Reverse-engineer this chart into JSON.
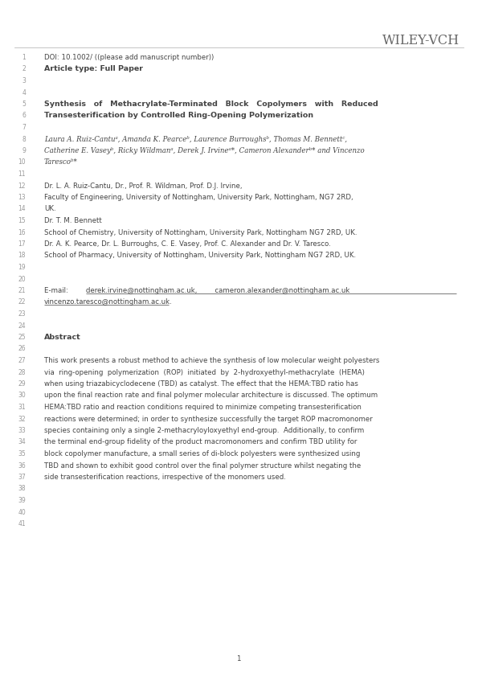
{
  "bg_color": "#ffffff",
  "wiley_text": "WILEY-VCH",
  "wiley_color": "#666666",
  "line_number_color": "#999999",
  "text_color": "#444444",
  "lines": [
    {
      "num": 1,
      "text": "DOI: 10.1002/ ((please add manuscript number))",
      "style": "normal"
    },
    {
      "num": 2,
      "text": "Article type: Full Paper",
      "style": "bold"
    },
    {
      "num": 3,
      "text": "",
      "style": "normal"
    },
    {
      "num": 4,
      "text": "",
      "style": "normal"
    },
    {
      "num": 5,
      "text": "Synthesis   of   Methacrylate-Terminated   Block   Copolymers   with   Reduced",
      "style": "bold"
    },
    {
      "num": 6,
      "text": "Transesterification by Controlled Ring-Opening Polymerization",
      "style": "bold"
    },
    {
      "num": 7,
      "text": "",
      "style": "normal"
    },
    {
      "num": 8,
      "text": "Laura A. Ruiz-Cantuᵃ, Amanda K. Pearceᵇ, Laurence Burroughsᵇ, Thomas M. Bennettᶜ,",
      "style": "italic"
    },
    {
      "num": 9,
      "text": "Catherine E. Vaseyᵇ, Ricky Wildmanᵃ, Derek J. Irvineᵃ*, Cameron Alexanderᵇ* and Vincenzo",
      "style": "italic"
    },
    {
      "num": 10,
      "text": "Tarescoᵇ*",
      "style": "italic"
    },
    {
      "num": 11,
      "text": "",
      "style": "normal"
    },
    {
      "num": 12,
      "text": "Dr. L. A. Ruiz-Cantu, Dr., Prof. R. Wildman, Prof. D.J. Irvine,",
      "style": "normal"
    },
    {
      "num": 13,
      "text": "Faculty of Engineering, University of Nottingham, University Park, Nottingham, NG7 2RD,",
      "style": "normal"
    },
    {
      "num": 14,
      "text": "UK.",
      "style": "normal"
    },
    {
      "num": 15,
      "text": "Dr. T. M. Bennett",
      "style": "normal"
    },
    {
      "num": 16,
      "text": "School of Chemistry, University of Nottingham, University Park, Nottingham NG7 2RD, UK.",
      "style": "normal"
    },
    {
      "num": 17,
      "text": "Dr. A. K. Pearce, Dr. L. Burroughs, C. E. Vasey, Prof. C. Alexander and Dr. V. Taresco.",
      "style": "normal"
    },
    {
      "num": 18,
      "text": "School of Pharmacy, University of Nottingham, University Park, Nottingham NG7 2RD, UK.",
      "style": "normal"
    },
    {
      "num": 19,
      "text": "",
      "style": "normal"
    },
    {
      "num": 20,
      "text": "",
      "style": "normal"
    },
    {
      "num": 21,
      "text": "E-mail:        derek.irvine@nottingham.ac.uk,        cameron.alexander@nottingham.ac.uk",
      "style": "underline"
    },
    {
      "num": 22,
      "text": "vincenzo.taresco@nottingham.ac.uk.",
      "style": "underline"
    },
    {
      "num": 23,
      "text": "",
      "style": "normal"
    },
    {
      "num": 24,
      "text": "",
      "style": "normal"
    },
    {
      "num": 25,
      "text": "Abstract",
      "style": "bold"
    },
    {
      "num": 26,
      "text": "",
      "style": "normal"
    },
    {
      "num": 27,
      "text": "This work presents a robust method to achieve the synthesis of low molecular weight polyesters",
      "style": "normal"
    },
    {
      "num": 28,
      "text": "via  ring-opening  polymerization  (ROP)  initiated  by  2-hydroxyethyl-methacrylate  (HEMA)",
      "style": "normal"
    },
    {
      "num": 29,
      "text": "when using triazabicyclodecene (TBD) as catalyst. The effect that the HEMA:TBD ratio has",
      "style": "normal"
    },
    {
      "num": 30,
      "text": "upon the final reaction rate and final polymer molecular architecture is discussed. The optimum",
      "style": "normal"
    },
    {
      "num": 31,
      "text": "HEMA:TBD ratio and reaction conditions required to minimize competing transesterification",
      "style": "normal"
    },
    {
      "num": 32,
      "text": "reactions were determined; in order to synthesize successfully the target ROP macromonomer",
      "style": "normal"
    },
    {
      "num": 33,
      "text": "species containing only a single 2-methacryloyloxyethyl end-group.  Additionally, to confirm",
      "style": "normal"
    },
    {
      "num": 34,
      "text": "the terminal end-group fidelity of the product macromonomers and confirm TBD utility for",
      "style": "normal"
    },
    {
      "num": 35,
      "text": "block copolymer manufacture, a small series of di-block polyesters were synthesized using",
      "style": "normal"
    },
    {
      "num": 36,
      "text": "TBD and shown to exhibit good control over the final polymer structure whilst negating the",
      "style": "normal"
    },
    {
      "num": 37,
      "text": "side transesterification reactions, irrespective of the monomers used.",
      "style": "normal"
    },
    {
      "num": 38,
      "text": "",
      "style": "normal"
    },
    {
      "num": 39,
      "text": "",
      "style": "normal"
    },
    {
      "num": 40,
      "text": "",
      "style": "normal"
    },
    {
      "num": 41,
      "text": "",
      "style": "normal"
    }
  ],
  "page_num_text": "1"
}
